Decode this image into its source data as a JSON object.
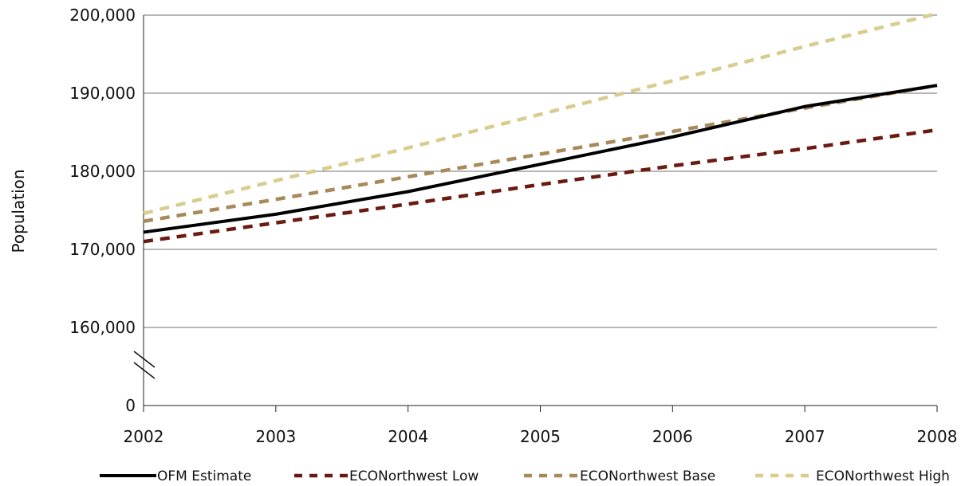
{
  "chart_data": {
    "type": "line",
    "x": [
      "2002",
      "2003",
      "2004",
      "2005",
      "2006",
      "2007",
      "2008"
    ],
    "ylabel": "Population",
    "y_axis_break": true,
    "y_ticks": [
      0,
      160000,
      170000,
      180000,
      190000,
      200000
    ],
    "y_tick_labels": [
      "0",
      "160,000",
      "170,000",
      "180,000",
      "190,000",
      "200,000"
    ],
    "ylim_upper": [
      160000,
      200000
    ],
    "grid": "horizontal",
    "legend_position": "bottom",
    "series": [
      {
        "name": "OFM Estimate",
        "color": "#000000",
        "style": "solid",
        "values": [
          172200,
          174500,
          177400,
          180900,
          184400,
          188300,
          191000
        ]
      },
      {
        "name": "ECONorthwest Low",
        "color": "#6b1a12",
        "style": "dashed",
        "values": [
          171000,
          173400,
          175800,
          178300,
          180700,
          182900,
          185300
        ]
      },
      {
        "name": "ECONorthwest Base",
        "color": "#a8895a",
        "style": "dashed",
        "values": [
          173600,
          176400,
          179300,
          182200,
          185100,
          188100,
          191000
        ]
      },
      {
        "name": "ECONorthwest High",
        "color": "#d7cd8e",
        "style": "dashed",
        "values": [
          174600,
          178800,
          183000,
          187300,
          191600,
          196000,
          200200
        ]
      }
    ]
  }
}
